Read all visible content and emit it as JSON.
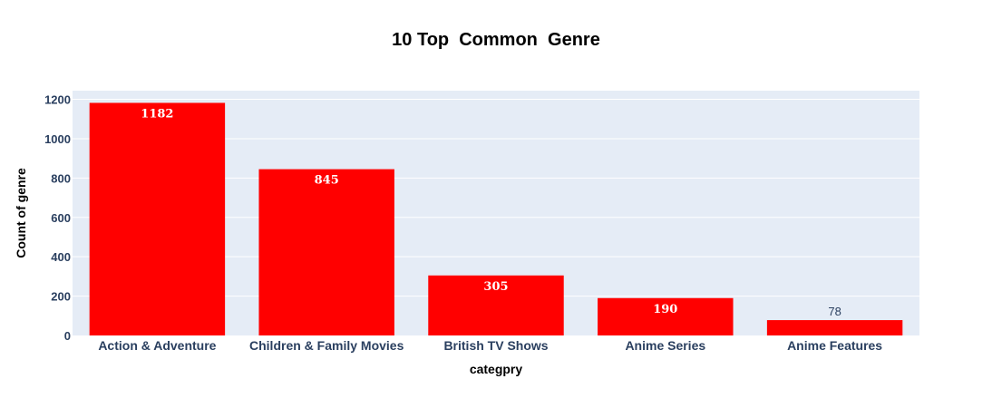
{
  "chart_data": {
    "type": "bar",
    "title": "10 Top  Common  Genre",
    "xlabel": "categpry",
    "ylabel": "Count of genre",
    "categories": [
      "Action & Adventure",
      "Children & Family Movies",
      "British TV Shows",
      "Anime Series",
      "Anime Features"
    ],
    "values": [
      1182,
      845,
      305,
      190,
      78
    ],
    "value_labels": [
      "1182",
      "845",
      "305",
      "190",
      "78"
    ],
    "yticks": [
      0,
      200,
      400,
      600,
      800,
      1000,
      1200
    ],
    "ytick_labels": [
      "0",
      "200",
      "400",
      "600",
      "800",
      "1000",
      "1200"
    ],
    "ylim": [
      0,
      1244
    ],
    "grid": true,
    "bar_color": "#ff0000",
    "plot_bg": "#e5ecf6"
  }
}
